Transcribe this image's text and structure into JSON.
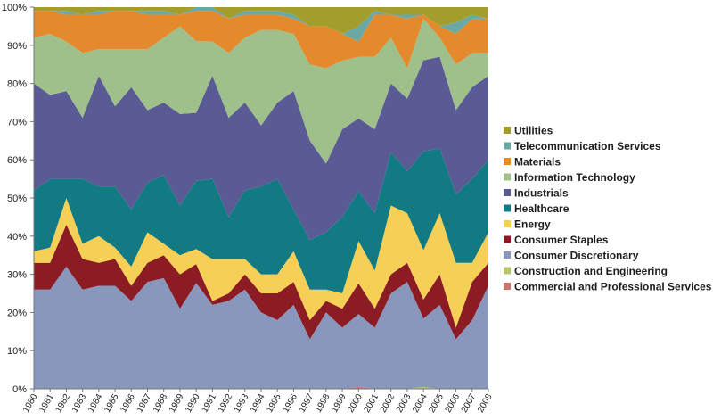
{
  "chart_data": {
    "type": "area",
    "stacked": true,
    "normalized": "percent",
    "title": "",
    "xlabel": "",
    "ylabel": "",
    "ylim": [
      0,
      100
    ],
    "y_ticks": [
      "0%",
      "10%",
      "20%",
      "30%",
      "40%",
      "50%",
      "60%",
      "70%",
      "80%",
      "90%",
      "100%"
    ],
    "grid": false,
    "legend_position": "right",
    "categories": [
      "1980",
      "1981",
      "1982",
      "1983",
      "1984",
      "1985",
      "1986",
      "1987",
      "1988",
      "1989",
      "1990",
      "1991",
      "1992",
      "1993",
      "1994",
      "1995",
      "1996",
      "1997",
      "1998",
      "1999",
      "2000",
      "2001",
      "2002",
      "2003",
      "2004",
      "2005",
      "2006",
      "2007",
      "2008"
    ],
    "series": [
      {
        "name": "Commercial and Professional Services",
        "color": "#c9756a",
        "values": [
          0,
          0,
          0,
          0,
          0,
          0,
          0,
          0,
          0,
          0,
          0,
          0,
          0,
          0,
          0,
          0,
          0,
          0,
          0,
          0,
          0.5,
          0,
          0,
          0,
          0,
          0,
          0,
          0,
          0
        ]
      },
      {
        "name": "Construction and Engineering",
        "color": "#b7c56b",
        "values": [
          0,
          0,
          0,
          0,
          0,
          0,
          0,
          0,
          0,
          0,
          0,
          0,
          0,
          0,
          0,
          0,
          0,
          0,
          0,
          0,
          0,
          0,
          0,
          0,
          0.5,
          0,
          0,
          0,
          0
        ]
      },
      {
        "name": "Consumer Discretionary",
        "color": "#8a97bd",
        "values": [
          26,
          26,
          32,
          26,
          27,
          27,
          23,
          28,
          29,
          21,
          28,
          22,
          23,
          26,
          20,
          18,
          22,
          13,
          20,
          16,
          19,
          16,
          25,
          28,
          18,
          22,
          13,
          18,
          27
        ]
      },
      {
        "name": "Consumer Staples",
        "color": "#8c1c24",
        "values": [
          7,
          7,
          11,
          8,
          6,
          7,
          4,
          5,
          6,
          9,
          5,
          1,
          2,
          4,
          5,
          7,
          6,
          5,
          3,
          5,
          8,
          5,
          5,
          5,
          5,
          8,
          3,
          10,
          6
        ]
      },
      {
        "name": "Energy",
        "color": "#f6cf57",
        "values": [
          3,
          4,
          7,
          4,
          7,
          3,
          5,
          8,
          3,
          5,
          4,
          11,
          9,
          4,
          5,
          5,
          8,
          8,
          3,
          4,
          11,
          10,
          18,
          13,
          13,
          16,
          17,
          5,
          8
        ]
      },
      {
        "name": "Healthcare",
        "color": "#127a82",
        "values": [
          16,
          18,
          5,
          17,
          13,
          16,
          15,
          13,
          18,
          13,
          18,
          21,
          11,
          18,
          23,
          25,
          11,
          13,
          15,
          20,
          13,
          15,
          14,
          11,
          26,
          17,
          18,
          22,
          19
        ]
      },
      {
        "name": "Industrials",
        "color": "#5a5b95",
        "values": [
          28,
          22,
          23,
          16,
          29,
          21,
          32,
          19,
          19,
          24,
          18,
          27,
          26,
          23,
          16,
          20,
          31,
          26,
          18,
          23,
          19,
          22,
          18,
          19,
          24,
          24,
          22,
          24,
          22
        ]
      },
      {
        "name": "Information Technology",
        "color": "#9fbf8b",
        "values": [
          12,
          16,
          13,
          17,
          7,
          15,
          10,
          16,
          17,
          23,
          19,
          9,
          17,
          17,
          25,
          19,
          15,
          20,
          25,
          18,
          16,
          19,
          12,
          8,
          11,
          5,
          12,
          9,
          6
        ]
      },
      {
        "name": "Materials",
        "color": "#e58a2c",
        "values": [
          7,
          6,
          7,
          10,
          9,
          10,
          10,
          9,
          6,
          3,
          8,
          8,
          9,
          6,
          4,
          4,
          4,
          10,
          11,
          7,
          4,
          11,
          6,
          13,
          1,
          3,
          8,
          9,
          9
        ]
      },
      {
        "name": "Telecommunication Services",
        "color": "#6aa8a6",
        "values": [
          0,
          0,
          1,
          0,
          1,
          0,
          0,
          1,
          1,
          0,
          1,
          1,
          0,
          1,
          1,
          1,
          1,
          0,
          0,
          0,
          4,
          1,
          0,
          1,
          0,
          0,
          3,
          1,
          0
        ]
      },
      {
        "name": "Utilities",
        "color": "#a39d2e",
        "values": [
          1,
          1,
          1,
          2,
          1,
          1,
          1,
          1,
          1,
          2,
          0,
          0,
          3,
          1,
          1,
          1,
          2,
          5,
          5,
          7,
          5,
          1,
          2,
          2,
          2,
          5,
          4,
          2,
          3
        ]
      }
    ]
  }
}
